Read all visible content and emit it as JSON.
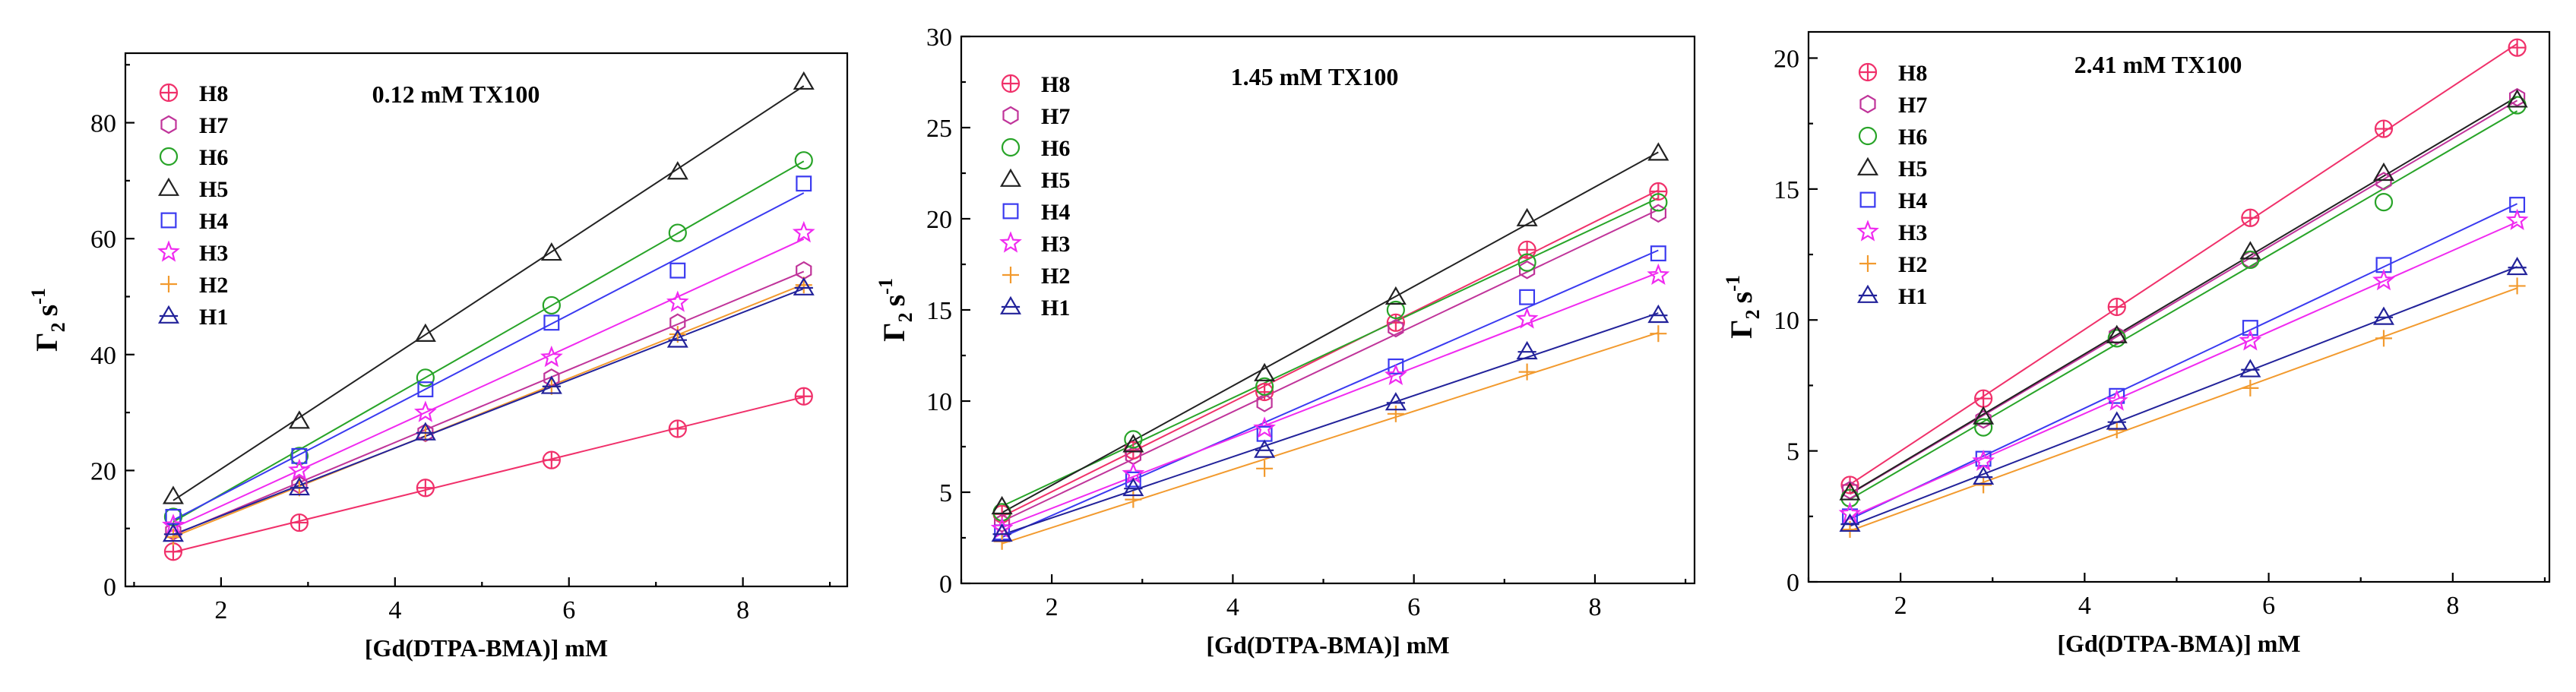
{
  "colors": {
    "H8": "#f0306a",
    "H7": "#c0349a",
    "H6": "#28a428",
    "H5": "#222222",
    "H4": "#3a3af0",
    "H3": "#f02af0",
    "H2": "#f29a2e",
    "H1": "#22229a"
  },
  "markers": {
    "H8": "circle-plus",
    "H7": "hexagon",
    "H6": "circle",
    "H5": "triangle",
    "H4": "square",
    "H3": "star",
    "H2": "plus",
    "H1": "triangle-line"
  },
  "chart_data": [
    {
      "type": "scatter",
      "title": "0.12 mM TX100",
      "xlabel": "[Gd(DTPA-BMA)] mM",
      "ylabel_main": "Γ",
      "ylabel_sub": "2",
      "ylabel_unit": "s",
      "ylabel_exp": "-1",
      "xlim": [
        0.9,
        9.2
      ],
      "ylim": [
        0,
        92
      ],
      "xticks": [
        2,
        4,
        6,
        8
      ],
      "yticks": [
        0,
        20,
        40,
        60,
        80
      ],
      "x": [
        1.45,
        2.9,
        4.35,
        5.8,
        7.25,
        8.7
      ],
      "series": [
        {
          "name": "H8",
          "values": [
            6,
            11,
            17,
            21.8,
            27.2,
            32.8
          ]
        },
        {
          "name": "H7",
          "values": [
            9.5,
            17.5,
            26.5,
            36,
            45.5,
            54.5
          ]
        },
        {
          "name": "H6",
          "values": [
            12,
            22.5,
            36,
            48.5,
            61,
            73.5
          ]
        },
        {
          "name": "H5",
          "values": [
            15.5,
            28.5,
            43.5,
            57.5,
            71.5,
            87
          ]
        },
        {
          "name": "H4",
          "values": [
            12,
            22.5,
            34,
            45.5,
            54.5,
            69.5
          ]
        },
        {
          "name": "H3",
          "values": [
            10.5,
            20,
            30,
            39.5,
            49,
            61
          ]
        },
        {
          "name": "H2",
          "values": [
            8.5,
            17,
            26.5,
            34.5,
            43.5,
            52
          ]
        },
        {
          "name": "H1",
          "values": [
            9,
            17,
            26.5,
            34.5,
            42.5,
            51.5
          ]
        }
      ]
    },
    {
      "type": "scatter",
      "title": "1.45 mM TX100",
      "xlabel": "[Gd(DTPA-BMA)] mM",
      "ylabel_main": "Γ",
      "ylabel_sub": "2",
      "ylabel_unit": "s",
      "ylabel_exp": "-1",
      "xlim": [
        1.0,
        9.1
      ],
      "ylim": [
        0,
        30
      ],
      "xticks": [
        2,
        4,
        6,
        8
      ],
      "yticks": [
        0,
        5,
        10,
        15,
        20,
        25,
        30
      ],
      "x": [
        1.45,
        2.9,
        4.35,
        5.8,
        7.25,
        8.7
      ],
      "series": [
        {
          "name": "H8",
          "values": [
            3.8,
            7.3,
            10.5,
            14.3,
            18.3,
            21.5
          ]
        },
        {
          "name": "H7",
          "values": [
            3.3,
            7.0,
            9.9,
            14.0,
            17.2,
            20.3
          ]
        },
        {
          "name": "H6",
          "values": [
            3.9,
            7.9,
            10.8,
            15.0,
            17.6,
            20.9
          ]
        },
        {
          "name": "H5",
          "values": [
            4.2,
            7.6,
            11.5,
            15.7,
            20.0,
            23.6
          ]
        },
        {
          "name": "H4",
          "values": [
            2.8,
            5.7,
            8.2,
            11.9,
            15.7,
            18.1
          ]
        },
        {
          "name": "H3",
          "values": [
            3.0,
            6.0,
            8.5,
            11.4,
            14.5,
            16.9
          ]
        },
        {
          "name": "H2",
          "values": [
            2.3,
            4.6,
            6.3,
            9.3,
            11.6,
            13.7
          ]
        },
        {
          "name": "H1",
          "values": [
            2.7,
            5.2,
            7.3,
            9.9,
            12.7,
            14.7
          ]
        }
      ]
    },
    {
      "type": "scatter",
      "title": "2.41 mM TX100",
      "xlabel": "[Gd(DTPA-BMA)] mM",
      "ylabel_main": "Γ",
      "ylabel_sub": "2",
      "ylabel_unit": "s",
      "ylabel_exp": "-1",
      "xlim": [
        1.0,
        9.05
      ],
      "ylim": [
        0,
        21
      ],
      "xticks": [
        2,
        4,
        6,
        8
      ],
      "yticks": [
        0,
        5,
        10,
        15,
        20
      ],
      "x": [
        1.45,
        2.9,
        4.35,
        5.8,
        7.25,
        8.7
      ],
      "series": [
        {
          "name": "H8",
          "values": [
            3.7,
            7.0,
            10.5,
            13.9,
            17.3,
            20.4
          ]
        },
        {
          "name": "H7",
          "values": [
            3.5,
            6.2,
            9.4,
            12.3,
            15.3,
            18.5
          ]
        },
        {
          "name": "H6",
          "values": [
            3.2,
            5.9,
            9.3,
            12.3,
            14.5,
            18.2
          ]
        },
        {
          "name": "H5",
          "values": [
            3.4,
            6.3,
            9.4,
            12.6,
            15.6,
            18.4
          ]
        },
        {
          "name": "H4",
          "values": [
            2.5,
            4.7,
            7.1,
            9.7,
            12.1,
            14.4
          ]
        },
        {
          "name": "H3",
          "values": [
            2.6,
            4.6,
            6.9,
            9.2,
            11.5,
            13.8
          ]
        },
        {
          "name": "H2",
          "values": [
            2.0,
            3.7,
            5.8,
            7.4,
            9.3,
            11.3
          ]
        },
        {
          "name": "H1",
          "values": [
            2.2,
            4.0,
            6.1,
            8.1,
            10.1,
            12.0
          ]
        }
      ]
    }
  ]
}
